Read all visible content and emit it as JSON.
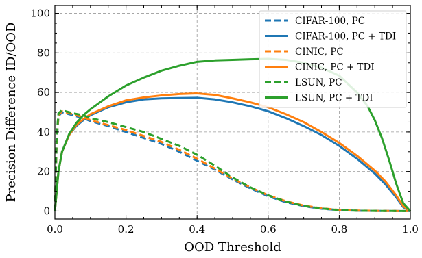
{
  "chart_data": {
    "type": "line",
    "xlabel": "OOD Threshold",
    "ylabel": "Precision Difference ID/OOD",
    "xlim": [
      0,
      1
    ],
    "ylim": [
      -4,
      104
    ],
    "xticks": [
      0.0,
      0.2,
      0.4,
      0.6,
      0.8,
      1.0
    ],
    "xtick_labels": [
      "0.0",
      "0.2",
      "0.4",
      "0.6",
      "0.8",
      "1.0"
    ],
    "yticks": [
      0,
      20,
      40,
      60,
      80,
      100
    ],
    "ytick_labels": [
      "0",
      "20",
      "40",
      "60",
      "80",
      "100"
    ],
    "grid": true,
    "legend_position": "top-right",
    "series": [
      {
        "name": "CIFAR-100, PC",
        "color": "#1f77b4",
        "style": "dashed",
        "x": [
          0,
          0.005,
          0.01,
          0.02,
          0.03,
          0.05,
          0.08,
          0.1,
          0.15,
          0.2,
          0.25,
          0.3,
          0.35,
          0.4,
          0.45,
          0.5,
          0.55,
          0.6,
          0.65,
          0.7,
          0.75,
          0.8,
          0.85,
          0.9,
          0.95,
          1.0
        ],
        "y": [
          0,
          35,
          48,
          50,
          49.5,
          48.5,
          47,
          45.5,
          43,
          40,
          37,
          34,
          30,
          25.5,
          21,
          16,
          11.5,
          7.5,
          4.5,
          2.5,
          1.2,
          0.5,
          0.2,
          0.1,
          0.05,
          0
        ]
      },
      {
        "name": "CIFAR-100, PC + TDI",
        "color": "#1f77b4",
        "style": "solid",
        "x": [
          0,
          0.005,
          0.01,
          0.02,
          0.04,
          0.06,
          0.08,
          0.1,
          0.15,
          0.2,
          0.25,
          0.3,
          0.35,
          0.4,
          0.45,
          0.5,
          0.55,
          0.6,
          0.65,
          0.7,
          0.75,
          0.8,
          0.85,
          0.9,
          0.93,
          0.96,
          0.98,
          1.0
        ],
        "y": [
          0,
          10,
          20,
          30,
          38.5,
          43,
          46,
          48.5,
          52.5,
          55,
          56.5,
          57,
          57.2,
          57.3,
          56.5,
          55,
          53,
          50.5,
          47,
          43,
          38.5,
          33,
          26.5,
          19,
          13.5,
          7,
          2,
          0
        ]
      },
      {
        "name": "CINIC, PC",
        "color": "#ff7f0e",
        "style": "dashed",
        "x": [
          0,
          0.005,
          0.01,
          0.02,
          0.03,
          0.05,
          0.08,
          0.1,
          0.15,
          0.2,
          0.25,
          0.3,
          0.35,
          0.4,
          0.45,
          0.5,
          0.55,
          0.6,
          0.65,
          0.7,
          0.75,
          0.8,
          0.85,
          0.9,
          0.95,
          1.0
        ],
        "y": [
          0,
          36,
          48.5,
          50.5,
          50,
          49,
          47.5,
          46,
          43.5,
          41,
          38,
          35,
          31,
          26.5,
          21.5,
          16.5,
          12,
          8,
          5,
          2.8,
          1.4,
          0.6,
          0.25,
          0.1,
          0.05,
          0
        ]
      },
      {
        "name": "CINIC, PC + TDI",
        "color": "#ff7f0e",
        "style": "solid",
        "x": [
          0,
          0.005,
          0.01,
          0.02,
          0.04,
          0.06,
          0.08,
          0.1,
          0.15,
          0.2,
          0.25,
          0.3,
          0.35,
          0.4,
          0.45,
          0.5,
          0.55,
          0.6,
          0.65,
          0.7,
          0.75,
          0.8,
          0.85,
          0.9,
          0.93,
          0.96,
          0.98,
          1.0
        ],
        "y": [
          0,
          10,
          20,
          30,
          38.5,
          43.5,
          46.5,
          49,
          53,
          56,
          57.5,
          58.5,
          59.2,
          59.5,
          58.8,
          57,
          55,
          52.5,
          49,
          45,
          40,
          34.5,
          28,
          20.5,
          15,
          8,
          2.5,
          0
        ]
      },
      {
        "name": "LSUN, PC",
        "color": "#2ca02c",
        "style": "dashed",
        "x": [
          0,
          0.005,
          0.01,
          0.02,
          0.03,
          0.05,
          0.08,
          0.1,
          0.15,
          0.2,
          0.25,
          0.3,
          0.35,
          0.4,
          0.45,
          0.5,
          0.55,
          0.6,
          0.65,
          0.7,
          0.75,
          0.8,
          0.85,
          0.9,
          0.95,
          1.0
        ],
        "y": [
          0,
          38,
          49.5,
          51,
          50.5,
          49.5,
          48.5,
          47,
          45,
          42.5,
          40,
          36.5,
          33,
          28.5,
          23,
          17,
          12,
          8,
          4.8,
          2.6,
          1.3,
          0.5,
          0.2,
          0.1,
          0.05,
          0
        ]
      },
      {
        "name": "LSUN, PC + TDI",
        "color": "#2ca02c",
        "style": "solid",
        "x": [
          0,
          0.005,
          0.01,
          0.02,
          0.04,
          0.06,
          0.08,
          0.1,
          0.15,
          0.2,
          0.25,
          0.3,
          0.35,
          0.4,
          0.45,
          0.5,
          0.55,
          0.6,
          0.65,
          0.7,
          0.75,
          0.8,
          0.85,
          0.88,
          0.9,
          0.92,
          0.94,
          0.96,
          0.98,
          1.0
        ],
        "y": [
          0,
          10,
          20,
          30,
          39,
          44.5,
          48.5,
          51.5,
          58,
          63.5,
          67.5,
          71,
          73.5,
          75.5,
          76.2,
          76.5,
          76.8,
          77,
          76.5,
          75,
          72.5,
          68.5,
          60,
          53,
          46,
          37,
          26,
          14,
          4,
          0
        ]
      }
    ]
  }
}
